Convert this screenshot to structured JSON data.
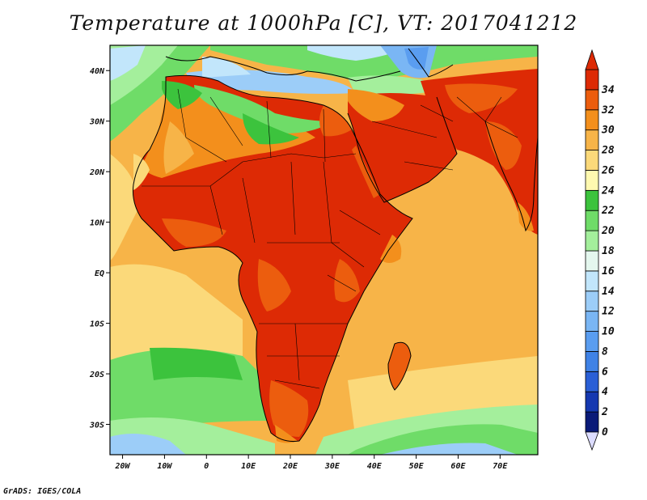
{
  "title": "Temperature at 1000hPa [C], VT: 2017041212",
  "credit": "GrADS: IGES/COLA",
  "x_ticks": [
    "20W",
    "10W",
    "0",
    "10E",
    "20E",
    "30E",
    "40E",
    "50E",
    "60E",
    "70E"
  ],
  "y_ticks": [
    "40N",
    "30N",
    "20N",
    "10N",
    "EQ",
    "10S",
    "20S",
    "30S"
  ],
  "colorbar": {
    "labels": [
      "0",
      "2",
      "4",
      "6",
      "8",
      "10",
      "12",
      "14",
      "16",
      "18",
      "20",
      "22",
      "24",
      "26",
      "28",
      "30",
      "32",
      "34"
    ],
    "colors": [
      "#0a1a78",
      "#1538b0",
      "#2a5fd6",
      "#3f82e6",
      "#5a9df0",
      "#7ab6f4",
      "#9ccdf8",
      "#c2e6fb",
      "#e4f7ee",
      "#a4ef9c",
      "#6fdc68",
      "#3cc33d",
      "#fff9b0",
      "#fbd97a",
      "#f7b448",
      "#f38f1c",
      "#ec5d0e",
      "#dd2a05"
    ],
    "over_color": "#dd2a05",
    "under_color": "#dcdcff"
  },
  "map": {
    "lon_range": [
      -23,
      79
    ],
    "lat_range": [
      -36,
      45
    ]
  }
}
